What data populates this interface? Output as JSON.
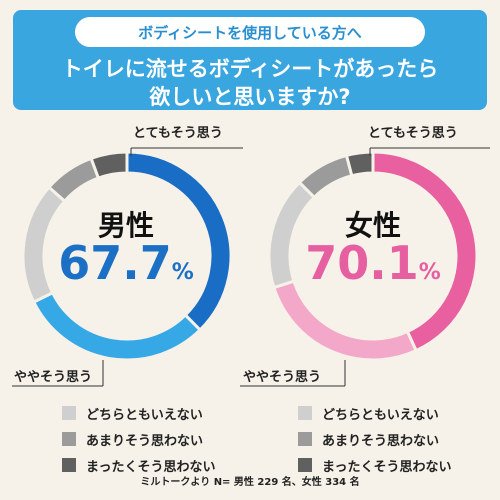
{
  "header": {
    "subtitle": "ボディシートを使用している方へ",
    "title_line1": "トイレに流せるボディシートがあったら",
    "title_line2": "欲しいと思いますか?"
  },
  "colors": {
    "header_bg": "#3aa6e0",
    "male_dark": "#1a6dc4",
    "male_light": "#36a8e6",
    "female_dark": "#e8609f",
    "female_light": "#f3a7c9",
    "neutral": "#cfcfcf",
    "not_much": "#9b9b9b",
    "not_at_all": "#606060"
  },
  "chart_data": [
    {
      "type": "pie",
      "title": "男性",
      "headline_value": "67.7",
      "headline_unit": "%",
      "categories": [
        "とてもそう思う",
        "ややそう思う",
        "どちらともいえない",
        "あまりそう思わない",
        "まったくそう思わない"
      ],
      "values": [
        37.6,
        30.1,
        18.8,
        7.9,
        5.6
      ]
    },
    {
      "type": "pie",
      "title": "女性",
      "headline_value": "70.1",
      "headline_unit": "%",
      "categories": [
        "とてもそう思う",
        "ややそう思う",
        "どちらともいえない",
        "あまりそう思わない",
        "まったくそう思わない"
      ],
      "values": [
        43.2,
        26.9,
        17.4,
        8.4,
        4.1
      ]
    }
  ],
  "callouts": {
    "very": "とてもそう思う",
    "somewhat": "ややそう思う"
  },
  "legend": [
    {
      "label": "どちらともいえない",
      "color": "#cfcfcf"
    },
    {
      "label": "あまりそう思わない",
      "color": "#9b9b9b"
    },
    {
      "label": "まったくそう思わない",
      "color": "#606060"
    }
  ],
  "source": "ミルトークより N= 男性 229 名、女性 334 名"
}
